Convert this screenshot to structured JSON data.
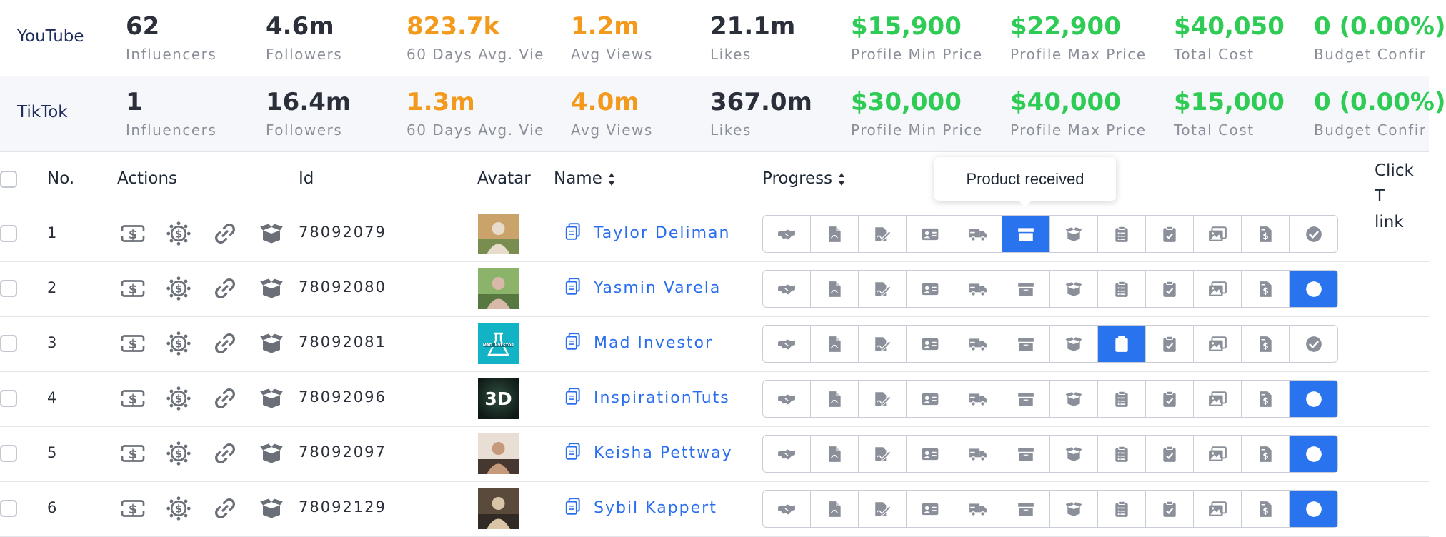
{
  "stats": [
    {
      "platform": "YouTube",
      "metrics": [
        {
          "value": "62",
          "label": "Influencers",
          "color": "dark"
        },
        {
          "value": "4.6m",
          "label": "Followers",
          "color": "dark"
        },
        {
          "value": "823.7k",
          "label": "60 Days Avg. Vie",
          "color": "orange"
        },
        {
          "value": "1.2m",
          "label": "Avg Views",
          "color": "orange"
        },
        {
          "value": "21.1m",
          "label": "Likes",
          "color": "dark"
        },
        {
          "value": "$15,900",
          "label": "Profile Min Price",
          "color": "green"
        },
        {
          "value": "$22,900",
          "label": "Profile Max Price",
          "color": "green"
        },
        {
          "value": "$40,050",
          "label": "Total Cost",
          "color": "green"
        },
        {
          "value": "0 (0.00%)",
          "label": "Budget Confir",
          "color": "green"
        }
      ]
    },
    {
      "platform": "TikTok",
      "metrics": [
        {
          "value": "1",
          "label": "Influencers",
          "color": "dark"
        },
        {
          "value": "16.4m",
          "label": "Followers",
          "color": "dark"
        },
        {
          "value": "1.3m",
          "label": "60 Days Avg. Vie",
          "color": "orange"
        },
        {
          "value": "4.0m",
          "label": "Avg Views",
          "color": "orange"
        },
        {
          "value": "367.0m",
          "label": "Likes",
          "color": "dark"
        },
        {
          "value": "$30,000",
          "label": "Profile Min Price",
          "color": "green"
        },
        {
          "value": "$40,000",
          "label": "Profile Max Price",
          "color": "green"
        },
        {
          "value": "$15,000",
          "label": "Total Cost",
          "color": "green"
        },
        {
          "value": "0 (0.00%)",
          "label": "Budget Confir",
          "color": "green"
        }
      ]
    }
  ],
  "table": {
    "headers": {
      "no": "No.",
      "actions": "Actions",
      "id": "Id",
      "avatar": "Avatar",
      "name": "Name",
      "progress": "Progress",
      "click_line1": "Click T",
      "click_line2": "link"
    },
    "tooltip": "Product received",
    "action_icons": [
      "payment-ticket-icon",
      "budget-cog-icon",
      "link-icon",
      "open-box-icon"
    ],
    "progress_steps": [
      "handshake-icon",
      "pdf-icon",
      "contract-sign-icon",
      "id-card-icon",
      "shipping-truck-icon",
      "product-box-icon",
      "open-box-icon",
      "clipboard-list-icon",
      "clipboard-check-icon",
      "gallery-icon",
      "invoice-icon",
      "check-circle-icon"
    ],
    "rows": [
      {
        "no": "1",
        "id": "78092079",
        "name": "Taylor Deliman",
        "avatar": "photo",
        "active_step": 5,
        "completed": false
      },
      {
        "no": "2",
        "id": "78092080",
        "name": "Yasmin Varela",
        "avatar": "photo",
        "active_step": 11,
        "completed": true
      },
      {
        "no": "3",
        "id": "78092081",
        "name": "Mad Investor",
        "avatar": "logo",
        "active_step": 7,
        "completed": false
      },
      {
        "no": "4",
        "id": "78092096",
        "name": "InspirationTuts",
        "avatar": "3d",
        "active_step": 11,
        "completed": true
      },
      {
        "no": "5",
        "id": "78092097",
        "name": "Keisha Pettway",
        "avatar": "photo",
        "active_step": 11,
        "completed": true
      },
      {
        "no": "6",
        "id": "78092129",
        "name": "Sybil Kappert",
        "avatar": "photo",
        "active_step": 11,
        "completed": true
      }
    ]
  },
  "colors": {
    "accent": "#2a73ee",
    "link": "#2a6ef0",
    "green": "#2ecc55",
    "orange": "#f39a1c",
    "icon_gray": "#8a8f99"
  }
}
